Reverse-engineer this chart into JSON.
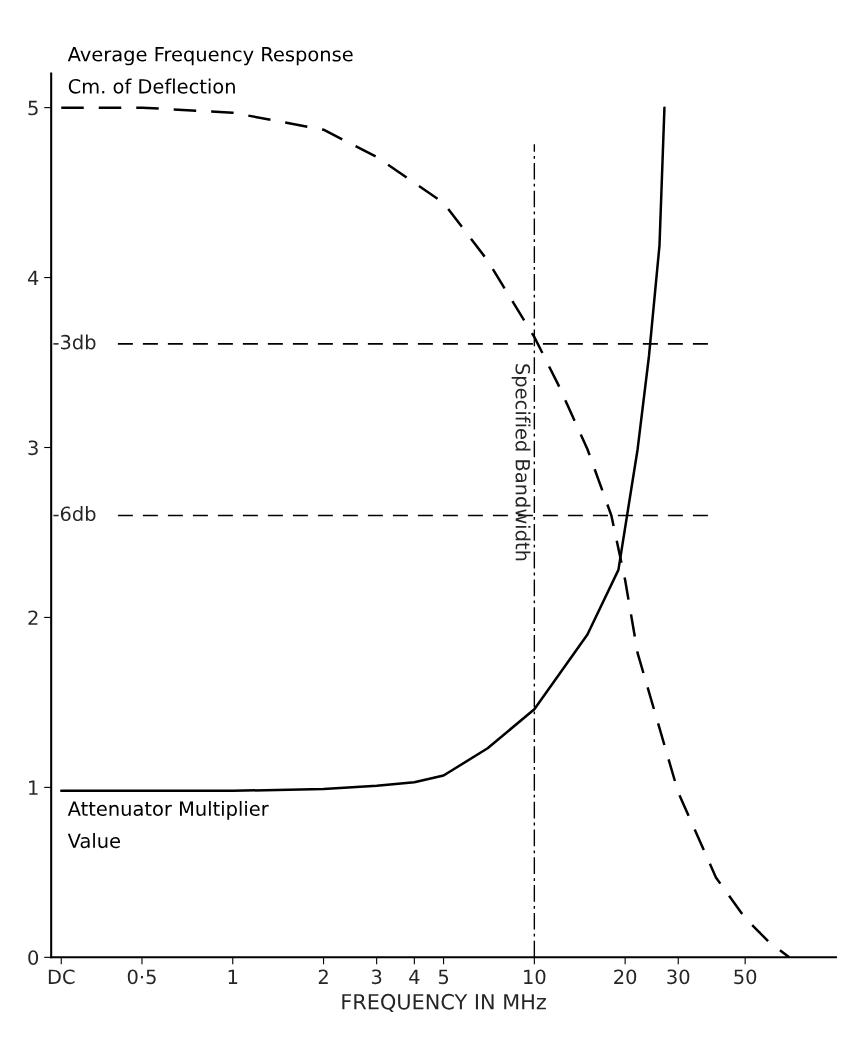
{
  "chart_data": {
    "type": "line",
    "xlabel": "FREQUENCY IN MHz",
    "log": "x",
    "xlim": [
      0.25,
      100
    ],
    "xticks": [
      {
        "value": 0.27,
        "label": "DC"
      },
      {
        "value": 0.5,
        "label": "0·5"
      },
      1,
      2,
      3,
      4,
      5,
      10,
      20,
      30,
      50
    ],
    "ylim": [
      0,
      5.2
    ],
    "yticks": [
      0,
      1,
      2,
      3,
      4,
      5
    ],
    "grid": false,
    "legend": false,
    "series": [
      {
        "name": "Average Frequency Response\nCm. of Deflection",
        "color": "#000000",
        "line_style": "dashed",
        "x": [
          0.27,
          0.5,
          1,
          2,
          3,
          5,
          7,
          10,
          12,
          15,
          18,
          20,
          22,
          30,
          40,
          50,
          60,
          70
        ],
        "values": [
          5.0,
          5.0,
          4.97,
          4.87,
          4.71,
          4.44,
          4.1,
          3.65,
          3.37,
          2.99,
          2.6,
          2.22,
          1.79,
          0.97,
          0.47,
          0.23,
          0.09,
          0.0
        ]
      },
      {
        "name": "Attenuator Multiplier\nValue",
        "color": "#000000",
        "line_style": "solid",
        "x": [
          0.27,
          1,
          2,
          3,
          4,
          5,
          7,
          10,
          15,
          19,
          22,
          24,
          26,
          27
        ],
        "values": [
          0.98,
          0.98,
          0.99,
          1.01,
          1.03,
          1.07,
          1.23,
          1.46,
          1.9,
          2.28,
          2.99,
          3.54,
          4.19,
          5.0
        ]
      }
    ],
    "ref_lines": [
      {
        "axis": "y",
        "value": 3.61,
        "label": "-3db",
        "line_style": "dashed",
        "color": "#000000"
      },
      {
        "axis": "y",
        "value": 2.6,
        "label": "-6db",
        "line_style": "dashed",
        "color": "#000000"
      },
      {
        "axis": "x",
        "value": 10,
        "label": "Specified Bandwidth",
        "line_style": "dashdot",
        "color": "#000000"
      }
    ]
  }
}
